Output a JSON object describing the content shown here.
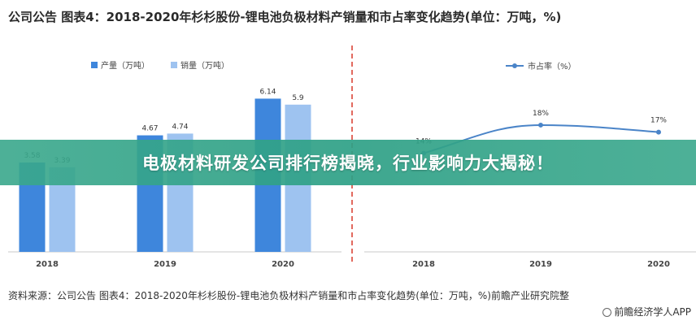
{
  "header": {
    "title": "公司公告 图表4：2018-2020年杉杉股份-锂电池负极材料产销量和市占率变化趋势(单位：万吨，%)"
  },
  "banner": {
    "text": "电极材料研发公司排行榜揭晓，行业影响力大揭秘！"
  },
  "footer": {
    "source": "资料来源：公司公告 图表4：2018-2020年杉杉股份-锂电池负极材料产销量和市占率变化趋势(单位：万吨，%)前瞻产业研究院整",
    "credit": "前瞻经济学人APP"
  },
  "chart_data": [
    {
      "type": "bar",
      "categories": [
        "2018",
        "2019",
        "2020"
      ],
      "series": [
        {
          "name": "产量（万吨）",
          "values": [
            3.58,
            4.67,
            6.14
          ],
          "labels": [
            "3.58",
            "4.67",
            "6.14"
          ],
          "color": "#3e86dc"
        },
        {
          "name": "销量（万吨）",
          "values": [
            3.39,
            4.74,
            5.9
          ],
          "labels": [
            "3.39",
            "4.74",
            "5.9"
          ],
          "color": "#9ec3f0"
        }
      ],
      "ylim": [
        0,
        7
      ],
      "legend": "top-left",
      "grid": false
    },
    {
      "type": "line",
      "categories": [
        "2018",
        "2019",
        "2020"
      ],
      "series": [
        {
          "name": "市占率（%）",
          "values": [
            14,
            18,
            17
          ],
          "labels": [
            "14%",
            "18%",
            "17%"
          ],
          "color": "#4a84c8"
        }
      ],
      "ylim": [
        0,
        22
      ],
      "legend": "top-right",
      "grid": false
    }
  ],
  "colors": {
    "banner": "#3aa88c",
    "divider": "#d8382a",
    "axis": "#c8c8c8"
  }
}
